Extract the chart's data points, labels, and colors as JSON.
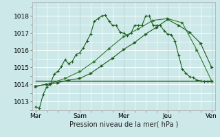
{
  "title": "",
  "xlabel": "Pression niveau de la mer( hPa )",
  "ylabel": "",
  "bg_color": "#cce8e8",
  "grid_color": "#ffffff",
  "ylim": [
    1012.5,
    1018.8
  ],
  "xlim": [
    -2,
    98
  ],
  "yticks": [
    1013,
    1014,
    1015,
    1016,
    1017,
    1018
  ],
  "xtick_positions": [
    0,
    24,
    48,
    72,
    96
  ],
  "xtick_labels": [
    "Mar",
    "Sam",
    "Mer",
    "Jeu",
    "Ven"
  ],
  "line_color_dark": "#1a5c1a",
  "line_color_med": "#2d7a2d",
  "series1_x": [
    0,
    2,
    4,
    6,
    8,
    10,
    12,
    14,
    16,
    18,
    20,
    22,
    24,
    26,
    28,
    30,
    32,
    34,
    36,
    38,
    40,
    42,
    44,
    46,
    48,
    50,
    52,
    54,
    56,
    58,
    60,
    62,
    64,
    66,
    68,
    70,
    72,
    74,
    76,
    78,
    80,
    82,
    84,
    86,
    88,
    90,
    92,
    94,
    96
  ],
  "series1_y": [
    1012.7,
    1012.6,
    1013.4,
    1013.85,
    1014.0,
    1014.6,
    1014.75,
    1015.05,
    1015.45,
    1015.2,
    1015.35,
    1015.75,
    1015.85,
    1016.15,
    1016.55,
    1016.95,
    1017.7,
    1017.85,
    1018.0,
    1018.05,
    1017.7,
    1017.45,
    1017.45,
    1017.05,
    1017.0,
    1016.85,
    1017.0,
    1017.45,
    1017.45,
    1017.45,
    1018.0,
    1018.0,
    1017.45,
    1017.45,
    1017.45,
    1017.15,
    1016.95,
    1016.9,
    1016.55,
    1015.7,
    1014.9,
    1014.65,
    1014.45,
    1014.4,
    1014.25,
    1014.2,
    1014.15,
    1014.15,
    1014.15
  ],
  "series2_x": [
    0,
    6,
    12,
    18,
    24,
    30,
    36,
    42,
    48,
    54,
    60,
    66,
    72,
    78,
    84,
    90,
    96
  ],
  "series2_y": [
    1013.9,
    1014.0,
    1014.1,
    1014.25,
    1014.35,
    1014.65,
    1015.1,
    1015.55,
    1016.05,
    1016.45,
    1016.95,
    1017.35,
    1017.8,
    1017.45,
    1017.05,
    1016.4,
    1015.0
  ],
  "series3_x": [
    0,
    8,
    16,
    24,
    32,
    40,
    48,
    56,
    64,
    72,
    80,
    88,
    96
  ],
  "series3_y": [
    1013.9,
    1014.05,
    1014.35,
    1014.75,
    1015.35,
    1016.1,
    1016.8,
    1017.25,
    1017.75,
    1017.85,
    1017.6,
    1016.0,
    1014.2
  ],
  "flat_line_x": [
    0,
    96
  ],
  "flat_line_y": [
    1014.2,
    1014.2
  ]
}
